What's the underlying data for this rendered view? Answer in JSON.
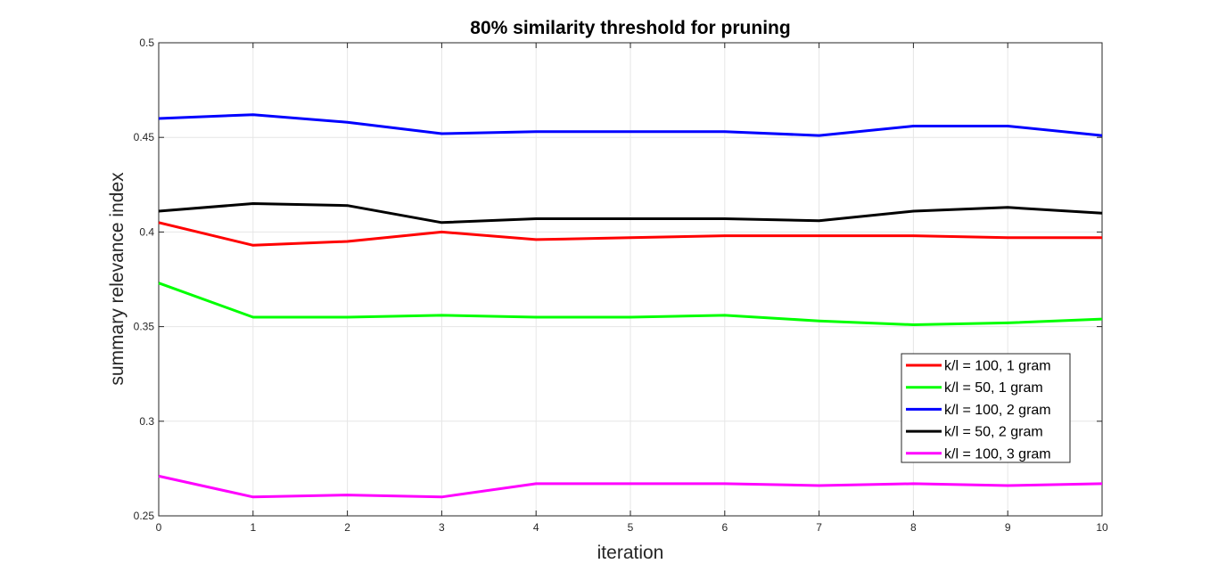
{
  "chart_data": {
    "type": "line",
    "title": "80% similarity threshold for pruning",
    "xlabel": "iteration",
    "ylabel": "summary relevance index",
    "x": [
      0,
      1,
      2,
      3,
      4,
      5,
      6,
      7,
      8,
      9,
      10
    ],
    "xlim": [
      0,
      10
    ],
    "ylim": [
      0.25,
      0.5
    ],
    "xticks": [
      "0",
      "1",
      "2",
      "3",
      "4",
      "5",
      "6",
      "7",
      "8",
      "9",
      "10"
    ],
    "yticks": [
      "0.25",
      "0.3",
      "0.35",
      "0.4",
      "0.45",
      "0.5"
    ],
    "grid": true,
    "legend_position": "right-middle",
    "series": [
      {
        "name": "k/l = 100, 1 gram",
        "color": "#ff0000",
        "values": [
          0.405,
          0.393,
          0.395,
          0.4,
          0.396,
          0.397,
          0.398,
          0.398,
          0.398,
          0.397,
          0.397
        ]
      },
      {
        "name": "k/l = 50, 1 gram",
        "color": "#00ff00",
        "values": [
          0.373,
          0.355,
          0.355,
          0.356,
          0.355,
          0.355,
          0.356,
          0.353,
          0.351,
          0.352,
          0.354
        ]
      },
      {
        "name": "k/l = 100, 2 gram",
        "color": "#0000ff",
        "values": [
          0.46,
          0.462,
          0.458,
          0.452,
          0.453,
          0.453,
          0.453,
          0.451,
          0.456,
          0.456,
          0.451
        ]
      },
      {
        "name": "k/l = 50, 2 gram",
        "color": "#000000",
        "values": [
          0.411,
          0.415,
          0.414,
          0.405,
          0.407,
          0.407,
          0.407,
          0.406,
          0.411,
          0.413,
          0.41
        ]
      },
      {
        "name": "k/l = 100, 3 gram",
        "color": "#ff00ff",
        "values": [
          0.271,
          0.26,
          0.261,
          0.26,
          0.267,
          0.267,
          0.267,
          0.266,
          0.267,
          0.266,
          0.267
        ]
      }
    ]
  }
}
